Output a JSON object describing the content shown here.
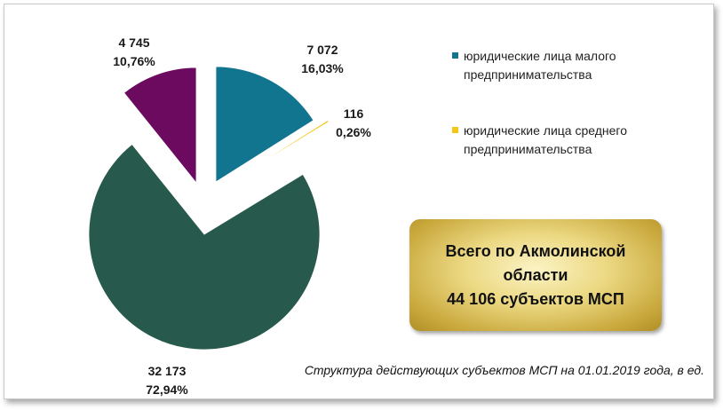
{
  "chart_data": {
    "type": "pie",
    "exploded": true,
    "slices": [
      {
        "name": "юридические лица малого предпринимательства",
        "value": "7 072",
        "percent": "16,03%",
        "color": "#11758f",
        "legend": true
      },
      {
        "name": "юридические лица среднего предпринимательства",
        "value": "116",
        "percent": "0,26%",
        "color": "#f5c518",
        "legend": true
      },
      {
        "name": "",
        "value": "32 173",
        "percent": "72,94%",
        "color": "#275a4c",
        "legend": false
      },
      {
        "name": "",
        "value": "4 745",
        "percent": "10,76%",
        "color": "#6b0a5f",
        "legend": false
      }
    ],
    "legend": {
      "position": "right",
      "items": [
        {
          "text": "юридические лица малого предпринимательства",
          "color": "#11758f"
        },
        {
          "text": "юридические лица среднего предпринимательства",
          "color": "#f5c518"
        }
      ]
    }
  },
  "total_box": {
    "line1": "Всего по Акмолинской",
    "line2": "области",
    "line3": "44 106 субъектов МСП"
  },
  "caption": "Структура действующих субъектов МСП на 01.01.2019 года, в ед."
}
